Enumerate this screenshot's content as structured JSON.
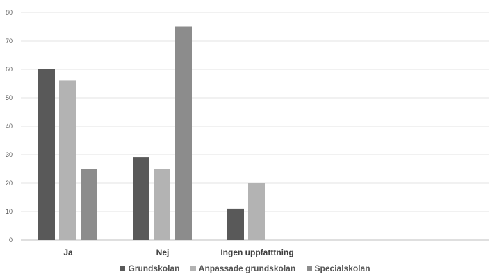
{
  "chart_data": {
    "type": "bar",
    "categories": [
      "Ja",
      "Nej",
      "Ingen uppfatttning"
    ],
    "series": [
      {
        "name": "Grundskolan",
        "values": [
          60,
          29,
          11
        ],
        "color": "#595959"
      },
      {
        "name": "Anpassade grundskolan",
        "values": [
          56,
          25,
          20
        ],
        "color": "#b3b3b3"
      },
      {
        "name": "Specialskolan",
        "values": [
          25,
          75,
          null
        ],
        "color": "#8c8c8c"
      }
    ],
    "yticks": [
      "0",
      "10",
      "20",
      "30",
      "40",
      "50",
      "60",
      "70",
      "80"
    ],
    "ylim": [
      0,
      80
    ],
    "grid": true,
    "legend": "bottom",
    "title": "",
    "xlabel": "",
    "ylabel": ""
  }
}
